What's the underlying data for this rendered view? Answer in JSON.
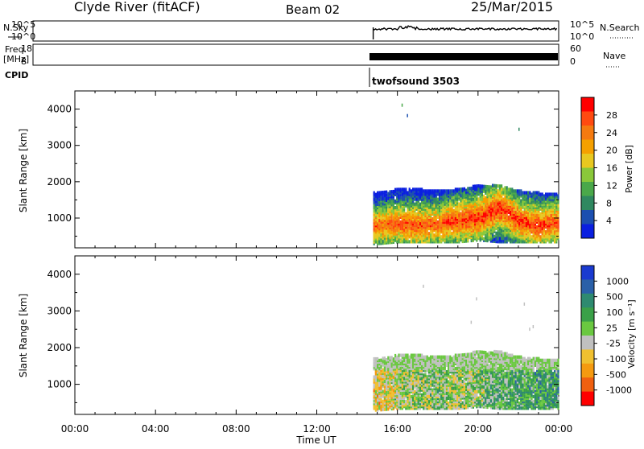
{
  "header": {
    "title": "Clyde River (fitACF)",
    "beam": "Beam 02",
    "date": "25/Mar/2015"
  },
  "top_panels": {
    "nsky_label": "N.Sky",
    "nsky_ticks": [
      "10^5",
      "10^0"
    ],
    "nsearch_label": "N.Search",
    "nsearch_ticks": [
      "10^5",
      "10^0"
    ],
    "freq_label_1": "Freq.",
    "freq_label_2": "[MHz]",
    "freq_ticks": [
      "18",
      "8"
    ],
    "nave_label": "Nave",
    "nave_ticks": [
      "60",
      "0"
    ],
    "cpid_label": "CPID",
    "cpid_value": "twofsound 3503"
  },
  "axes": {
    "xlabel": "Time UT",
    "x_ticks": [
      "00:00",
      "04:00",
      "08:00",
      "12:00",
      "16:00",
      "20:00",
      "00:00"
    ],
    "ylabel": "Slant Range [km]",
    "y_ticks": [
      "1000",
      "2000",
      "3000",
      "4000"
    ]
  },
  "colorbars": {
    "power": {
      "label": "Power [dB]",
      "ticks": [
        "4",
        "8",
        "12",
        "16",
        "20",
        "24",
        "28"
      ],
      "colors": [
        "#0a1fe0",
        "#1c4fb0",
        "#2f8860",
        "#4aa84a",
        "#8ac83a",
        "#e8c820",
        "#f5a000",
        "#f57a10",
        "#ff4a10",
        "#ff0000"
      ]
    },
    "velocity": {
      "label": "Velocity [m s⁻¹]",
      "ticks": [
        "1000",
        "500",
        "100",
        "25",
        "-25",
        "-100",
        "-500",
        "-1000"
      ],
      "colors": [
        "#1a3ad0",
        "#2a60a8",
        "#2e8a70",
        "#3aa048",
        "#6ac840",
        "#c0c0c0",
        "#f0c030",
        "#f59a10",
        "#f06010",
        "#ff0000"
      ]
    }
  },
  "chart_data": [
    {
      "type": "heatmap",
      "title": "Power",
      "xlabel": "Time UT",
      "ylabel": "Slant Range [km]",
      "xlim": [
        0,
        24
      ],
      "ylim": [
        180,
        4500
      ],
      "value_label": "Power [dB]",
      "value_range": [
        0,
        30
      ],
      "data_start_hour": 14.8,
      "profile": [
        {
          "hour": 15,
          "min_km": 300,
          "max_km": 1700,
          "peak_km": 800,
          "peak_db": 24
        },
        {
          "hour": 16,
          "min_km": 350,
          "max_km": 1800,
          "peak_km": 850,
          "peak_db": 26
        },
        {
          "hour": 17,
          "min_km": 350,
          "max_km": 1800,
          "peak_km": 800,
          "peak_db": 26
        },
        {
          "hour": 18,
          "min_km": 350,
          "max_km": 1750,
          "peak_km": 850,
          "peak_db": 25
        },
        {
          "hour": 19,
          "min_km": 350,
          "max_km": 1800,
          "peak_km": 950,
          "peak_db": 27
        },
        {
          "hour": 20,
          "min_km": 400,
          "max_km": 1900,
          "peak_km": 1000,
          "peak_db": 28
        },
        {
          "hour": 21,
          "min_km": 350,
          "max_km": 1900,
          "peak_km": 1300,
          "peak_db": 28
        },
        {
          "hour": 22,
          "min_km": 350,
          "max_km": 1750,
          "peak_km": 950,
          "peak_db": 27
        },
        {
          "hour": 23,
          "min_km": 350,
          "max_km": 1700,
          "peak_km": 800,
          "peak_db": 27
        },
        {
          "hour": 24,
          "min_km": 350,
          "max_km": 1700,
          "peak_km": 900,
          "peak_db": 26
        }
      ]
    },
    {
      "type": "heatmap",
      "title": "Velocity",
      "xlabel": "Time UT",
      "ylabel": "Slant Range [km]",
      "xlim": [
        0,
        24
      ],
      "ylim": [
        180,
        4500
      ],
      "value_label": "Velocity [m s^-1]",
      "value_range": [
        -1200,
        1200
      ],
      "data_start_hour": 14.8,
      "profile": [
        {
          "hour": 15,
          "min_km": 300,
          "max_km": 1700,
          "mean_velocity": -300
        },
        {
          "hour": 16,
          "min_km": 350,
          "max_km": 1800,
          "mean_velocity": -150
        },
        {
          "hour": 17,
          "min_km": 350,
          "max_km": 1800,
          "mean_velocity": 50
        },
        {
          "hour": 18,
          "min_km": 350,
          "max_km": 1750,
          "mean_velocity": 100
        },
        {
          "hour": 19,
          "min_km": 350,
          "max_km": 1800,
          "mean_velocity": -50
        },
        {
          "hour": 20,
          "min_km": 400,
          "max_km": 1900,
          "mean_velocity": 150
        },
        {
          "hour": 21,
          "min_km": 350,
          "max_km": 1900,
          "mean_velocity": 250
        },
        {
          "hour": 22,
          "min_km": 350,
          "max_km": 1750,
          "mean_velocity": 300
        },
        {
          "hour": 23,
          "min_km": 350,
          "max_km": 1700,
          "mean_velocity": 350
        },
        {
          "hour": 24,
          "min_km": 350,
          "max_km": 1700,
          "mean_velocity": 400
        }
      ]
    }
  ]
}
